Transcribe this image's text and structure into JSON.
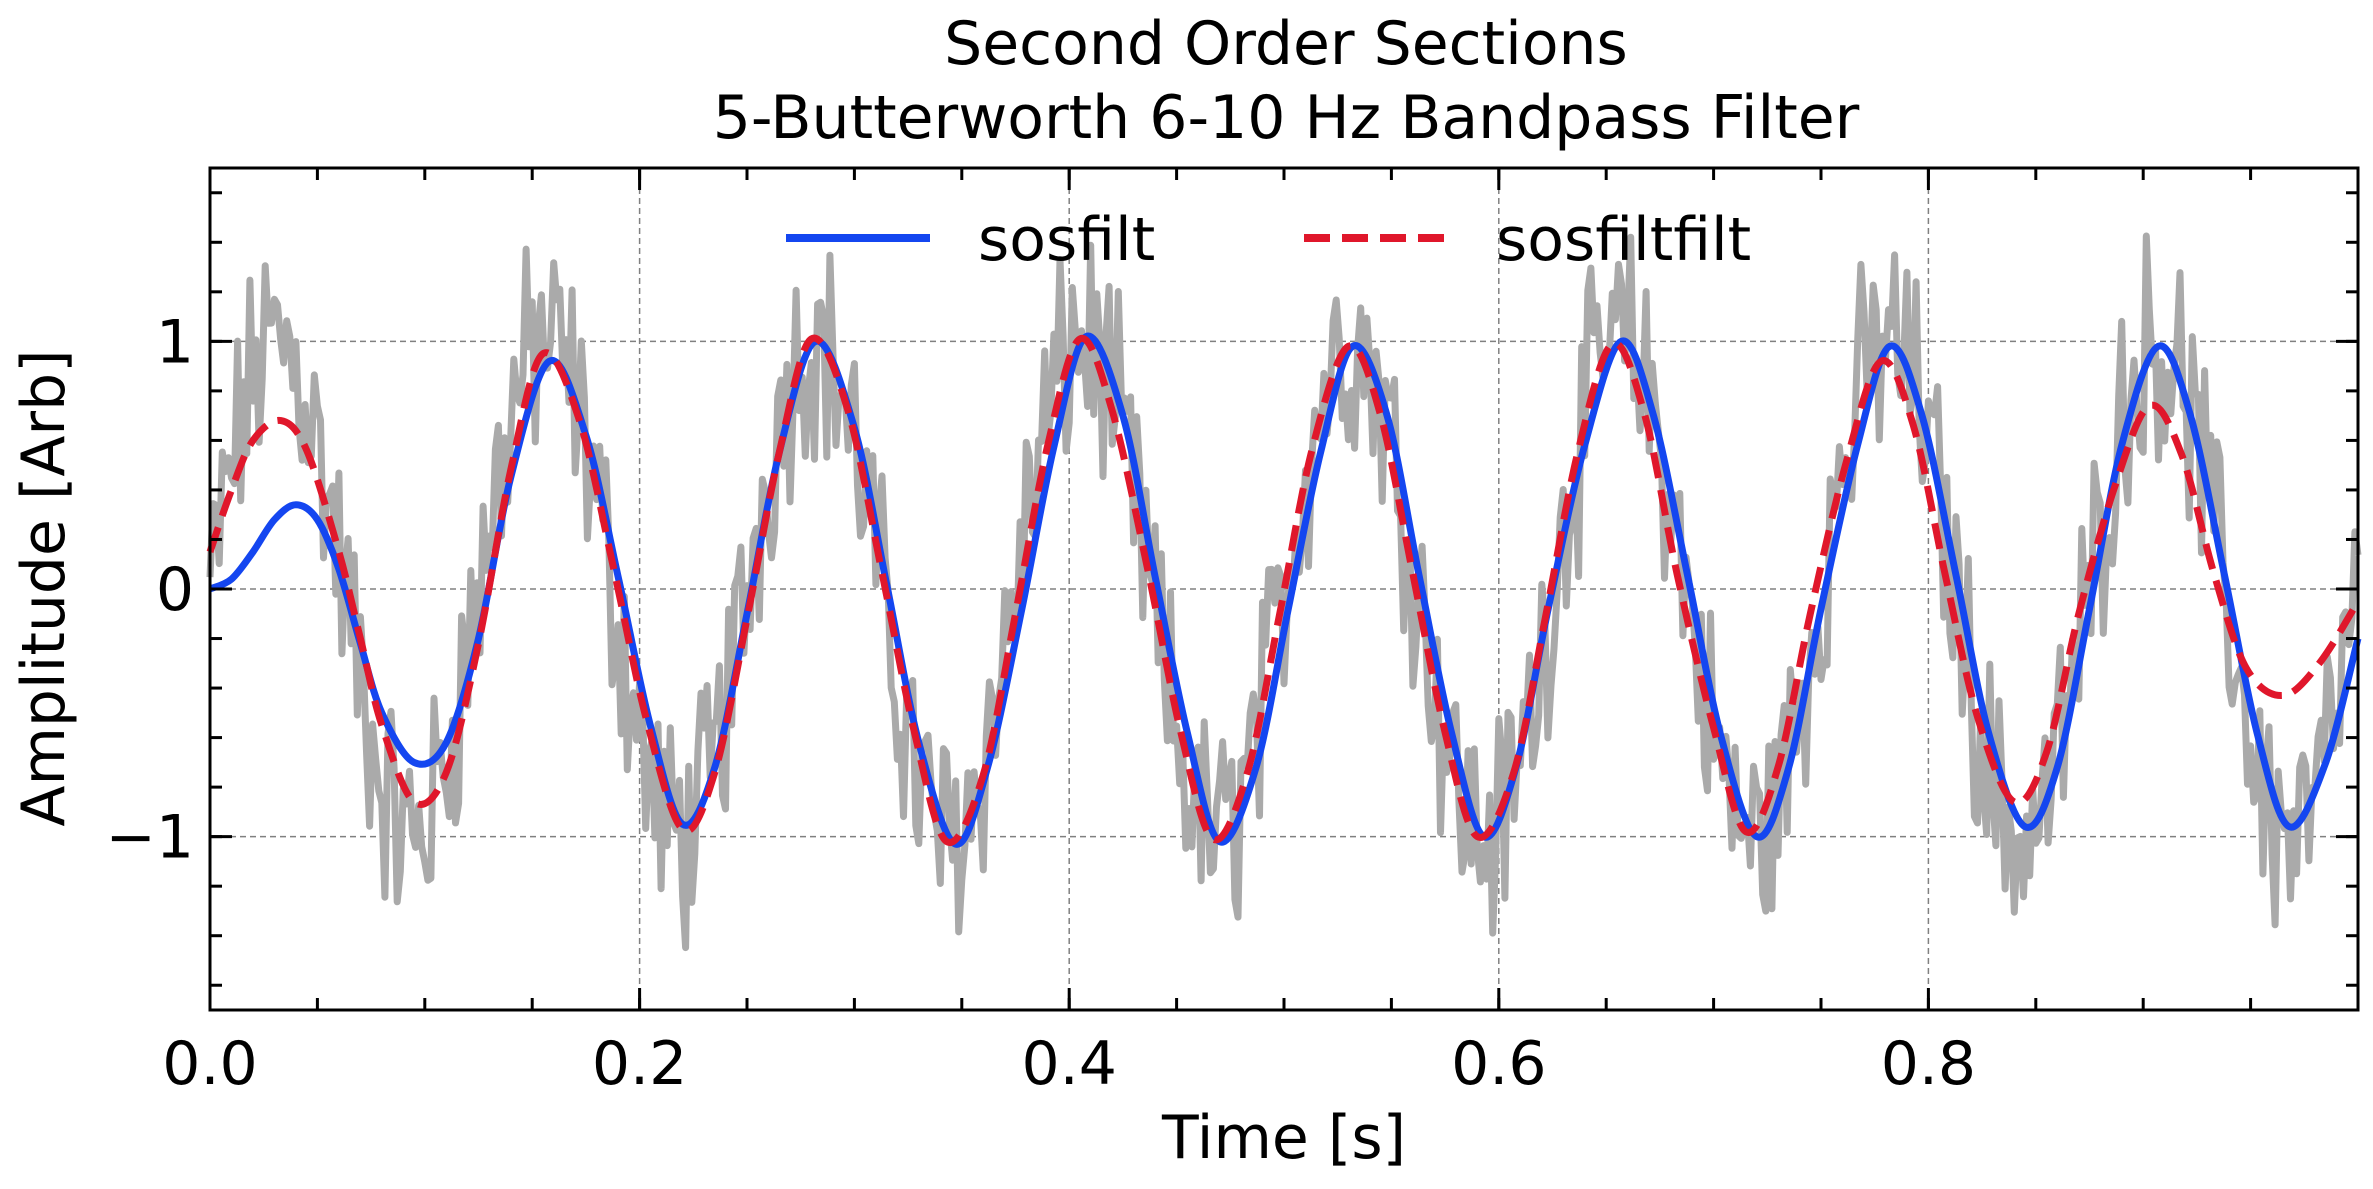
{
  "colors": {
    "sosfilt": "#1446f0",
    "sosfiltfilt": "#e0172b",
    "raw_signal": "#aaaaaa",
    "grid": "#808080",
    "axes": "#000000"
  },
  "chart_data": {
    "type": "line",
    "title": "Second Order Sections",
    "subtitle": "5-Butterworth 6-10 Hz Bandpass Filter",
    "xlabel": "Time [s]",
    "ylabel": "Amplitude [Arb]",
    "xlim": [
      0.0,
      1.0
    ],
    "ylim": [
      -1.7,
      1.7
    ],
    "x_ticks": [
      0.0,
      0.2,
      0.4,
      0.6,
      0.8
    ],
    "x_tick_labels": [
      "0.0",
      "0.2",
      "0.4",
      "0.6",
      "0.8"
    ],
    "y_ticks": [
      -1,
      0,
      1
    ],
    "y_tick_labels": [
      "−1",
      "0",
      "1"
    ],
    "grid": true,
    "legend": {
      "placement": "upper-center",
      "columns": 2
    },
    "signal_frequency_hz": 8,
    "series": [
      {
        "name": "sosfilt",
        "style": "solid",
        "points": [
          [
            0.0,
            0.0
          ],
          [
            0.01,
            0.04
          ],
          [
            0.02,
            0.15
          ],
          [
            0.03,
            0.28
          ],
          [
            0.04,
            0.34
          ],
          [
            0.05,
            0.28
          ],
          [
            0.06,
            0.08
          ],
          [
            0.07,
            -0.22
          ],
          [
            0.08,
            -0.5
          ],
          [
            0.095,
            -0.7
          ],
          [
            0.11,
            -0.62
          ],
          [
            0.125,
            -0.2
          ],
          [
            0.14,
            0.45
          ],
          [
            0.158,
            0.92
          ],
          [
            0.175,
            0.62
          ],
          [
            0.19,
            0.05
          ],
          [
            0.205,
            -0.55
          ],
          [
            0.22,
            -0.95
          ],
          [
            0.235,
            -0.72
          ],
          [
            0.25,
            -0.1
          ],
          [
            0.265,
            0.55
          ],
          [
            0.282,
            1.0
          ],
          [
            0.3,
            0.65
          ],
          [
            0.315,
            0.02
          ],
          [
            0.33,
            -0.62
          ],
          [
            0.347,
            -1.03
          ],
          [
            0.362,
            -0.72
          ],
          [
            0.378,
            -0.08
          ],
          [
            0.393,
            0.58
          ],
          [
            0.408,
            1.02
          ],
          [
            0.425,
            0.7
          ],
          [
            0.44,
            0.05
          ],
          [
            0.455,
            -0.58
          ],
          [
            0.47,
            -1.02
          ],
          [
            0.487,
            -0.72
          ],
          [
            0.502,
            -0.08
          ],
          [
            0.517,
            0.55
          ],
          [
            0.532,
            0.98
          ],
          [
            0.548,
            0.7
          ],
          [
            0.563,
            0.05
          ],
          [
            0.578,
            -0.58
          ],
          [
            0.593,
            -1.0
          ],
          [
            0.608,
            -0.72
          ],
          [
            0.623,
            -0.08
          ],
          [
            0.64,
            0.58
          ],
          [
            0.657,
            1.0
          ],
          [
            0.672,
            0.7
          ],
          [
            0.688,
            0.05
          ],
          [
            0.703,
            -0.58
          ],
          [
            0.72,
            -1.0
          ],
          [
            0.735,
            -0.72
          ],
          [
            0.75,
            -0.08
          ],
          [
            0.767,
            0.58
          ],
          [
            0.782,
            0.98
          ],
          [
            0.797,
            0.7
          ],
          [
            0.813,
            0.05
          ],
          [
            0.828,
            -0.58
          ],
          [
            0.845,
            -0.96
          ],
          [
            0.86,
            -0.72
          ],
          [
            0.875,
            -0.08
          ],
          [
            0.89,
            0.58
          ],
          [
            0.907,
            0.98
          ],
          [
            0.922,
            0.7
          ],
          [
            0.938,
            0.05
          ],
          [
            0.953,
            -0.58
          ],
          [
            0.968,
            -0.96
          ],
          [
            0.985,
            -0.7
          ],
          [
            1.0,
            -0.2
          ]
        ]
      },
      {
        "name": "sosfiltfilt",
        "style": "dashed",
        "points": [
          [
            0.0,
            0.15
          ],
          [
            0.01,
            0.4
          ],
          [
            0.02,
            0.6
          ],
          [
            0.033,
            0.68
          ],
          [
            0.045,
            0.56
          ],
          [
            0.06,
            0.15
          ],
          [
            0.07,
            -0.2
          ],
          [
            0.08,
            -0.55
          ],
          [
            0.095,
            -0.86
          ],
          [
            0.11,
            -0.74
          ],
          [
            0.125,
            -0.22
          ],
          [
            0.14,
            0.48
          ],
          [
            0.155,
            0.95
          ],
          [
            0.172,
            0.68
          ],
          [
            0.188,
            0.08
          ],
          [
            0.203,
            -0.52
          ],
          [
            0.22,
            -0.97
          ],
          [
            0.235,
            -0.74
          ],
          [
            0.25,
            -0.12
          ],
          [
            0.265,
            0.55
          ],
          [
            0.28,
            1.01
          ],
          [
            0.297,
            0.72
          ],
          [
            0.313,
            0.06
          ],
          [
            0.328,
            -0.58
          ],
          [
            0.343,
            -1.02
          ],
          [
            0.36,
            -0.75
          ],
          [
            0.375,
            -0.1
          ],
          [
            0.39,
            0.58
          ],
          [
            0.405,
            1.01
          ],
          [
            0.42,
            0.72
          ],
          [
            0.437,
            0.06
          ],
          [
            0.452,
            -0.58
          ],
          [
            0.467,
            -1.01
          ],
          [
            0.483,
            -0.74
          ],
          [
            0.498,
            -0.1
          ],
          [
            0.513,
            0.56
          ],
          [
            0.53,
            0.98
          ],
          [
            0.545,
            0.7
          ],
          [
            0.56,
            0.06
          ],
          [
            0.575,
            -0.58
          ],
          [
            0.59,
            -1.0
          ],
          [
            0.607,
            -0.74
          ],
          [
            0.622,
            -0.1
          ],
          [
            0.637,
            0.56
          ],
          [
            0.653,
            0.99
          ],
          [
            0.668,
            0.7
          ],
          [
            0.683,
            0.06
          ],
          [
            0.7,
            -0.56
          ],
          [
            0.715,
            -0.98
          ],
          [
            0.73,
            -0.72
          ],
          [
            0.745,
            -0.1
          ],
          [
            0.762,
            0.52
          ],
          [
            0.778,
            0.92
          ],
          [
            0.793,
            0.66
          ],
          [
            0.808,
            0.05
          ],
          [
            0.823,
            -0.52
          ],
          [
            0.84,
            -0.86
          ],
          [
            0.855,
            -0.66
          ],
          [
            0.87,
            -0.1
          ],
          [
            0.887,
            0.42
          ],
          [
            0.903,
            0.74
          ],
          [
            0.918,
            0.54
          ],
          [
            0.933,
            0.06
          ],
          [
            0.948,
            -0.32
          ],
          [
            0.965,
            -0.43
          ],
          [
            0.982,
            -0.3
          ],
          [
            1.0,
            -0.05
          ]
        ]
      }
    ]
  }
}
